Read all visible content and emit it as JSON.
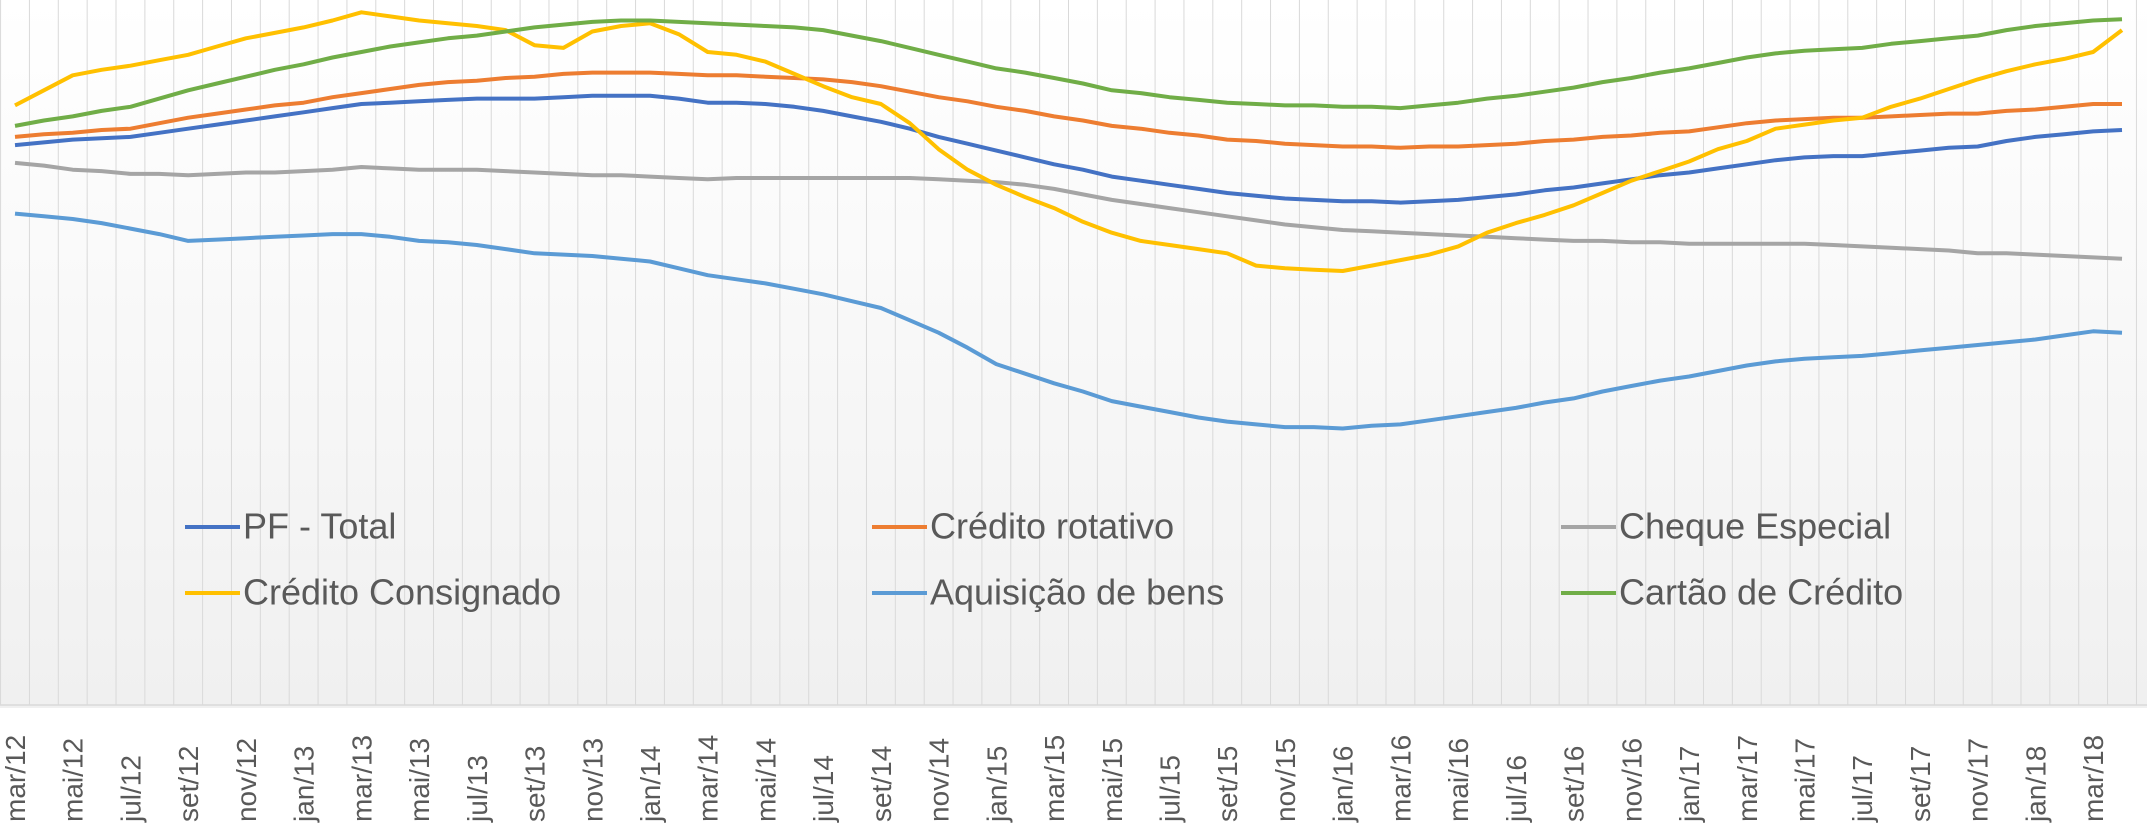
{
  "chart_data": {
    "type": "line",
    "categories": [
      "mar/12",
      null,
      "mai/12",
      null,
      "jul/12",
      null,
      "set/12",
      null,
      "nov/12",
      null,
      "jan/13",
      null,
      "mar/13",
      null,
      "mai/13",
      null,
      "jul/13",
      null,
      "set/13",
      null,
      "nov/13",
      null,
      "jan/14",
      null,
      "mar/14",
      null,
      "mai/14",
      null,
      "jul/14",
      null,
      "set/14",
      null,
      "nov/14",
      null,
      "jan/15",
      null,
      "mar/15",
      null,
      "mai/15",
      null,
      "jul/15",
      null,
      "set/15",
      null,
      "nov/15",
      null,
      "jan/16",
      null,
      "mar/16",
      null,
      "mai/16",
      null,
      "jul/16",
      null,
      "set/16",
      null,
      "nov/16",
      null,
      "jan/17",
      null,
      "mar/17",
      null,
      "mai/17",
      null,
      "jul/17",
      null,
      "set/17",
      null,
      "nov/17",
      null,
      "jan/18",
      null,
      "mar/18",
      null
    ],
    "ylim": [
      0,
      515
    ],
    "grid": true,
    "legend": "bottom",
    "series": [
      {
        "name": "PF - Total",
        "color": "#4472c4",
        "values": [
          409,
          411,
          413,
          414,
          415,
          418,
          421,
          424,
          427,
          430,
          433,
          436,
          439,
          440,
          441,
          442,
          443,
          443,
          443,
          444,
          445,
          445,
          445,
          443,
          440,
          440,
          439,
          437,
          434,
          430,
          426,
          421,
          415,
          410,
          405,
          400,
          395,
          391,
          386,
          383,
          380,
          377,
          374,
          372,
          370,
          369,
          368,
          368,
          367,
          368,
          369,
          371,
          373,
          376,
          378,
          381,
          384,
          387,
          389,
          392,
          395,
          398,
          400,
          401,
          401,
          403,
          405,
          407,
          408,
          412,
          415,
          417,
          419,
          420
        ]
      },
      {
        "name": "Crédito rotativo",
        "color": "#ed7d31",
        "values": [
          415,
          417,
          418,
          420,
          421,
          425,
          429,
          432,
          435,
          438,
          440,
          444,
          447,
          450,
          453,
          455,
          456,
          458,
          459,
          461,
          462,
          462,
          462,
          461,
          460,
          460,
          459,
          458,
          457,
          455,
          452,
          448,
          444,
          441,
          437,
          434,
          430,
          427,
          423,
          421,
          418,
          416,
          413,
          412,
          410,
          409,
          408,
          408,
          407,
          408,
          408,
          409,
          410,
          412,
          413,
          415,
          416,
          418,
          419,
          422,
          425,
          427,
          428,
          429,
          429,
          430,
          431,
          432,
          432,
          434,
          435,
          437,
          439,
          439
        ]
      },
      {
        "name": "Cheque Especial",
        "color": "#a5a5a5",
        "values": [
          396,
          394,
          391,
          390,
          388,
          388,
          387,
          388,
          389,
          389,
          390,
          391,
          393,
          392,
          391,
          391,
          391,
          390,
          389,
          388,
          387,
          387,
          386,
          385,
          384,
          385,
          385,
          385,
          385,
          385,
          385,
          385,
          384,
          383,
          382,
          380,
          377,
          373,
          369,
          366,
          363,
          360,
          357,
          354,
          351,
          349,
          347,
          346,
          345,
          344,
          343,
          342,
          341,
          340,
          339,
          339,
          338,
          338,
          337,
          337,
          337,
          337,
          337,
          336,
          335,
          334,
          333,
          332,
          330,
          330,
          329,
          328,
          327,
          326
        ]
      },
      {
        "name": "Crédito Consignado",
        "color": "#ffc000",
        "values": [
          438,
          449,
          460,
          464,
          467,
          471,
          475,
          481,
          487,
          491,
          495,
          500,
          506,
          503,
          500,
          498,
          496,
          493,
          482,
          480,
          492,
          496,
          498,
          490,
          477,
          475,
          470,
          461,
          452,
          444,
          439,
          425,
          406,
          391,
          380,
          371,
          363,
          353,
          345,
          339,
          336,
          333,
          330,
          321,
          319,
          318,
          317,
          321,
          325,
          329,
          335,
          345,
          352,
          358,
          365,
          374,
          383,
          390,
          397,
          406,
          412,
          421,
          424,
          427,
          429,
          437,
          443,
          450,
          457,
          463,
          468,
          472,
          477,
          493
        ]
      },
      {
        "name": "Aquisição de bens",
        "color": "#5b9bd5",
        "values": [
          359,
          357,
          355,
          352,
          348,
          344,
          339,
          340,
          341,
          342,
          343,
          344,
          344,
          342,
          339,
          338,
          336,
          333,
          330,
          329,
          328,
          326,
          324,
          319,
          314,
          311,
          308,
          304,
          300,
          295,
          290,
          281,
          272,
          261,
          249,
          242,
          235,
          229,
          222,
          218,
          214,
          210,
          207,
          205,
          203,
          203,
          202,
          204,
          205,
          208,
          211,
          214,
          217,
          221,
          224,
          229,
          233,
          237,
          240,
          244,
          248,
          251,
          253,
          254,
          255,
          257,
          259,
          261,
          263,
          265,
          267,
          270,
          273,
          272
        ]
      },
      {
        "name": "Cartão de Crédito",
        "color": "#70ad47",
        "values": [
          423,
          427,
          430,
          434,
          437,
          443,
          449,
          454,
          459,
          464,
          468,
          473,
          477,
          481,
          484,
          487,
          489,
          492,
          495,
          497,
          499,
          500,
          500,
          499,
          498,
          497,
          496,
          495,
          493,
          489,
          485,
          480,
          475,
          470,
          465,
          462,
          458,
          454,
          449,
          447,
          444,
          442,
          440,
          439,
          438,
          438,
          437,
          437,
          436,
          438,
          440,
          443,
          445,
          448,
          451,
          455,
          458,
          462,
          465,
          469,
          473,
          476,
          478,
          479,
          480,
          483,
          485,
          487,
          489,
          493,
          496,
          498,
          500,
          501
        ]
      }
    ]
  }
}
